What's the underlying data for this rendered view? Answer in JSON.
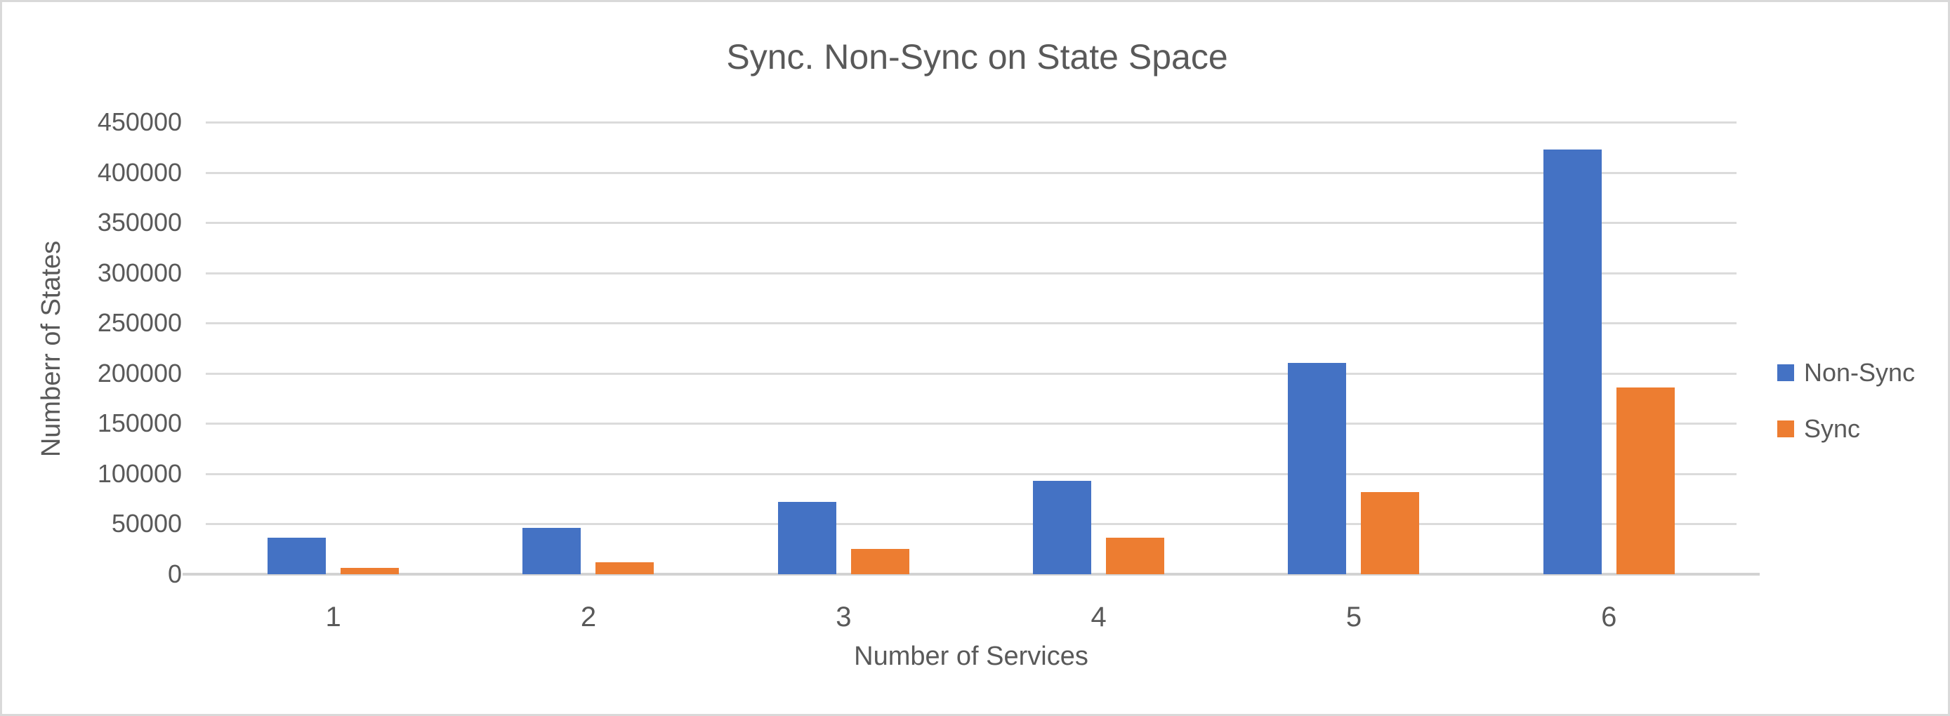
{
  "chart_data": {
    "type": "bar",
    "title": "Sync. Non-Sync on State Space",
    "xlabel": "Number of Services",
    "ylabel": "Numberr of States",
    "categories": [
      "1",
      "2",
      "3",
      "4",
      "5",
      "6"
    ],
    "series": [
      {
        "name": "Non-Sync",
        "color": "#4472C4",
        "values": [
          36000,
          46000,
          72000,
          93000,
          210000,
          423000
        ]
      },
      {
        "name": "Sync",
        "color": "#ED7D31",
        "values": [
          6000,
          12000,
          25000,
          36000,
          82000,
          186000
        ]
      }
    ],
    "ylim": [
      0,
      450000
    ],
    "ytick_step": 50000,
    "yticks": [
      0,
      50000,
      100000,
      150000,
      200000,
      250000,
      300000,
      350000,
      400000,
      450000
    ],
    "grid": "horizontal-gridlines-on",
    "legend_position": "right",
    "colors": {
      "text": "#595959",
      "gridline": "#dbdbdb",
      "non_sync": "#4472C4",
      "sync": "#ED7D31",
      "background": "#ffffff",
      "border": "#d9d9d9"
    }
  }
}
